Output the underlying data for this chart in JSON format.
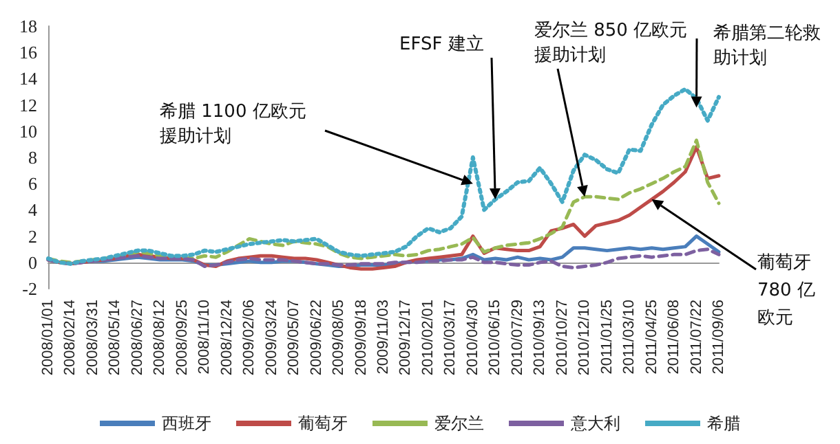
{
  "chart_data": {
    "type": "line",
    "categories": [
      "2008/01/01",
      null,
      "2008/02/14",
      null,
      "2008/03/31",
      null,
      "2008/05/14",
      null,
      "2008/06/27",
      null,
      "2008/08/12",
      null,
      "2008/09/25",
      null,
      "2008/11/10",
      null,
      "2008/12/24",
      null,
      "2009/02/06",
      null,
      "2009/03/24",
      null,
      "2009/05/07",
      null,
      "2009/06/22",
      null,
      "2009/08/05",
      null,
      "2009/09/18",
      null,
      "2009/11/03",
      null,
      "2009/12/17",
      null,
      "2010/02/01",
      null,
      "2010/03/17",
      null,
      "2010/04/30",
      null,
      "2010/06/15",
      null,
      "2010/07/29",
      null,
      "2010/09/13",
      null,
      "2010/10/27",
      null,
      "2010/12/10",
      null,
      "2011/01/25",
      null,
      "2011/03/10",
      null,
      "2011/04/25",
      null,
      "2011/06/08",
      null,
      "2011/07/22",
      null,
      "2011/09/06"
    ],
    "series": [
      {
        "name": "西班牙",
        "color": "#4a7ebb",
        "line_style": "solid",
        "values": [
          0.2,
          0.0,
          -0.1,
          0.0,
          0.1,
          0.1,
          0.2,
          0.3,
          0.4,
          0.3,
          0.2,
          0.2,
          0.2,
          0.1,
          -0.2,
          -0.2,
          -0.1,
          0.0,
          0.1,
          0.0,
          0.0,
          0.1,
          0.1,
          0.0,
          -0.1,
          -0.2,
          -0.3,
          -0.3,
          -0.2,
          -0.2,
          -0.2,
          -0.1,
          0.0,
          0.1,
          0.1,
          0.2,
          0.2,
          0.3,
          0.6,
          0.2,
          0.3,
          0.2,
          0.4,
          0.2,
          0.3,
          0.2,
          0.4,
          1.1,
          1.1,
          1.0,
          0.9,
          1.0,
          1.1,
          1.0,
          1.1,
          1.0,
          1.1,
          1.2,
          2.0,
          1.4,
          0.8
        ]
      },
      {
        "name": "葡萄牙",
        "color": "#be4b48",
        "line_style": "solid",
        "values": [
          0.2,
          0.0,
          -0.1,
          0.0,
          0.1,
          0.2,
          0.3,
          0.5,
          0.6,
          0.5,
          0.4,
          0.3,
          0.3,
          0.2,
          -0.2,
          -0.3,
          0.1,
          0.3,
          0.4,
          0.5,
          0.5,
          0.4,
          0.3,
          0.3,
          0.2,
          0.0,
          -0.2,
          -0.4,
          -0.5,
          -0.5,
          -0.4,
          -0.3,
          0.0,
          0.2,
          0.3,
          0.4,
          0.5,
          0.6,
          2.0,
          0.7,
          1.1,
          1.0,
          0.9,
          0.9,
          1.2,
          2.4,
          2.6,
          2.9,
          2.0,
          2.8,
          3.0,
          3.2,
          3.6,
          4.2,
          4.8,
          5.4,
          6.1,
          6.9,
          8.8,
          6.4,
          6.6
        ]
      },
      {
        "name": "爱尔兰",
        "color": "#98b954",
        "line_style": "dashed",
        "values": [
          0.3,
          0.1,
          0.0,
          0.1,
          0.2,
          0.3,
          0.4,
          0.6,
          0.8,
          0.7,
          0.5,
          0.4,
          0.4,
          0.3,
          0.5,
          0.4,
          0.8,
          1.3,
          1.8,
          1.6,
          1.4,
          1.3,
          1.6,
          1.5,
          1.4,
          1.2,
          0.7,
          0.4,
          0.3,
          0.4,
          0.5,
          0.6,
          0.5,
          0.6,
          0.9,
          1.0,
          1.2,
          1.4,
          1.9,
          0.8,
          1.1,
          1.3,
          1.4,
          1.5,
          1.8,
          2.2,
          2.7,
          4.6,
          5.0,
          5.0,
          4.9,
          4.8,
          5.3,
          5.6,
          6.0,
          6.4,
          6.9,
          7.3,
          9.3,
          6.1,
          4.5
        ]
      },
      {
        "name": "意大利",
        "color": "#7d60a0",
        "line_style": "dashed",
        "values": [
          0.2,
          0.0,
          -0.1,
          0.0,
          0.1,
          0.2,
          0.3,
          0.4,
          0.5,
          0.4,
          0.3,
          0.3,
          0.3,
          0.2,
          -0.3,
          -0.2,
          0.0,
          0.2,
          0.3,
          0.2,
          0.2,
          0.2,
          0.1,
          0.0,
          -0.1,
          -0.1,
          -0.2,
          -0.2,
          -0.1,
          -0.1,
          -0.1,
          0.0,
          0.0,
          0.0,
          0.1,
          0.1,
          0.2,
          0.2,
          0.4,
          0.0,
          0.0,
          -0.1,
          -0.2,
          -0.2,
          0.0,
          0.1,
          -0.3,
          -0.4,
          -0.3,
          -0.2,
          0.0,
          0.3,
          0.4,
          0.5,
          0.4,
          0.5,
          0.6,
          0.6,
          0.9,
          1.0,
          0.6
        ]
      },
      {
        "name": "希腊",
        "color": "#46aac5",
        "line_style": "dotted",
        "values": [
          0.3,
          0.0,
          -0.1,
          0.1,
          0.2,
          0.3,
          0.5,
          0.7,
          0.9,
          0.9,
          0.7,
          0.5,
          0.5,
          0.6,
          0.9,
          0.8,
          1.0,
          1.2,
          1.4,
          1.5,
          1.6,
          1.7,
          1.6,
          1.7,
          1.8,
          1.3,
          0.8,
          0.6,
          0.5,
          0.6,
          0.7,
          0.8,
          1.2,
          2.0,
          2.6,
          2.3,
          2.6,
          3.5,
          8.0,
          4.0,
          4.8,
          5.4,
          6.1,
          6.2,
          7.2,
          6.0,
          4.6,
          7.0,
          8.2,
          7.8,
          7.1,
          6.8,
          8.6,
          8.5,
          10.5,
          12.0,
          12.7,
          13.2,
          12.5,
          10.8,
          12.6
        ]
      }
    ],
    "ylim": [
      -2,
      18
    ],
    "yticks": [
      -2,
      0,
      2,
      4,
      6,
      8,
      10,
      12,
      14,
      16,
      18
    ],
    "grid": false,
    "legend": "bottom",
    "marker": "none",
    "annotations": [
      {
        "text": "希腊 1100 亿欧元援助计划",
        "x": "2010/04/30",
        "y": 6
      },
      {
        "text": "EFSF 建立",
        "x": "2010/06/15",
        "y": 4.8
      },
      {
        "text": "爱尔兰 850 亿欧元援助计划",
        "x": "2010/12/10",
        "y": 5.0
      },
      {
        "text": "希腊第二轮救助计划",
        "x": "2011/07/22",
        "y": 11.8
      },
      {
        "text": "葡萄牙 780 亿欧元",
        "x": "2011/04/25",
        "y": 4.8
      }
    ]
  }
}
